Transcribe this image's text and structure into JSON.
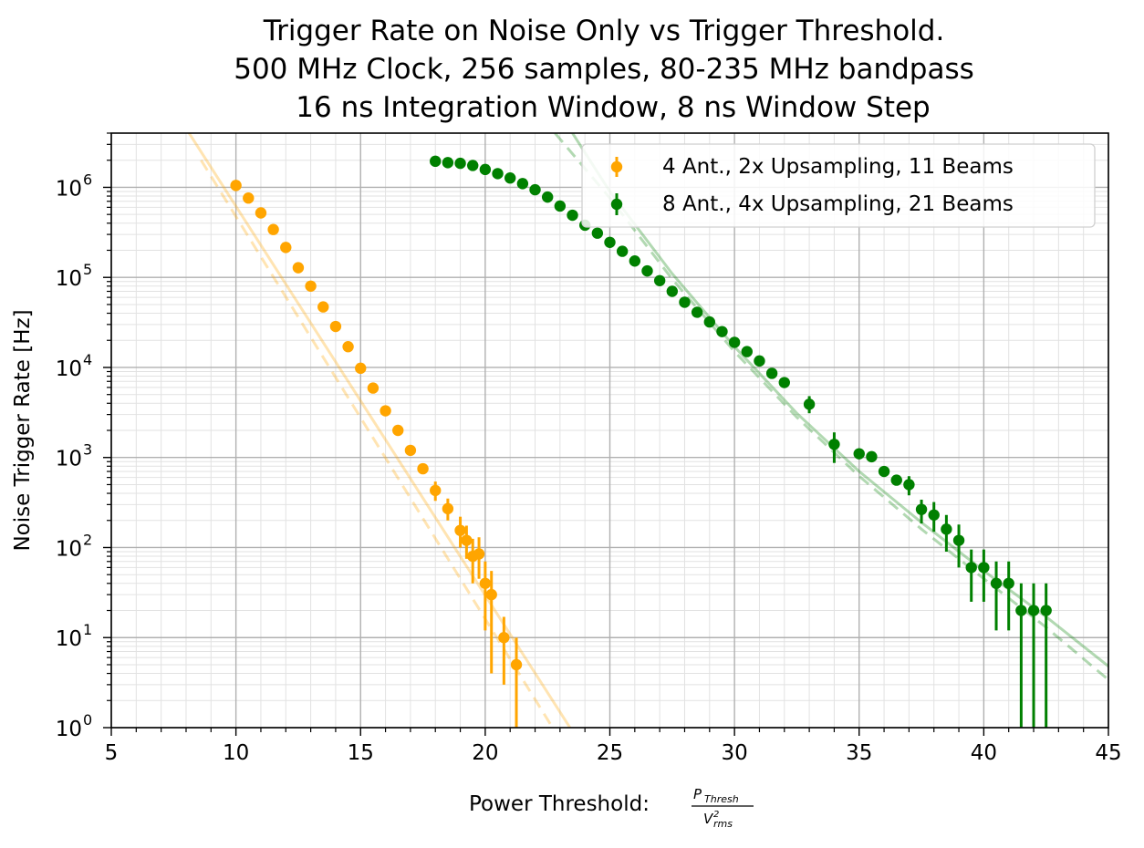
{
  "chart_data": {
    "type": "scatter",
    "title": "Trigger Rate on Noise Only vs Trigger Threshold.",
    "subtitle_lines": [
      "500 MHz Clock, 256 samples, 80-235 MHz bandpass",
      "16 ns Integration Window, 8 ns Window Step"
    ],
    "xlabel_prefix": "Power Threshold:",
    "xlabel_fraction": {
      "numerator": "P",
      "numerator_sub": "Thresh",
      "denominator": "V",
      "denominator_sup": "2",
      "denominator_sub": "rms"
    },
    "ylabel": "Noise Trigger Rate [Hz]",
    "xlim": [
      5,
      45
    ],
    "ylim": [
      1,
      4000000
    ],
    "yscale": "log",
    "grid": true,
    "legend_position": "top-right",
    "x_ticks": [
      "5",
      "10",
      "15",
      "20",
      "25",
      "30",
      "35",
      "40",
      "45"
    ],
    "y_ticks": [
      {
        "base": "10",
        "exp": "0"
      },
      {
        "base": "10",
        "exp": "1"
      },
      {
        "base": "10",
        "exp": "2"
      },
      {
        "base": "10",
        "exp": "3"
      },
      {
        "base": "10",
        "exp": "4"
      },
      {
        "base": "10",
        "exp": "5"
      },
      {
        "base": "10",
        "exp": "6"
      }
    ],
    "series": [
      {
        "name": "4 Ant., 2x Upsampling, 11 Beams",
        "color": "#ffa500",
        "points": [
          {
            "x": 10.0,
            "y": 1050000
          },
          {
            "x": 10.5,
            "y": 760000
          },
          {
            "x": 11.0,
            "y": 520000
          },
          {
            "x": 11.5,
            "y": 340000
          },
          {
            "x": 12.0,
            "y": 215000
          },
          {
            "x": 12.5,
            "y": 128000
          },
          {
            "x": 13.0,
            "y": 80000
          },
          {
            "x": 13.5,
            "y": 47000
          },
          {
            "x": 14.0,
            "y": 28500
          },
          {
            "x": 14.5,
            "y": 17000
          },
          {
            "x": 15.0,
            "y": 9800
          },
          {
            "x": 15.5,
            "y": 5900
          },
          {
            "x": 16.0,
            "y": 3300
          },
          {
            "x": 16.5,
            "y": 2000
          },
          {
            "x": 17.0,
            "y": 1200
          },
          {
            "x": 17.5,
            "y": 750
          },
          {
            "x": 18.0,
            "y": 430,
            "err_lo": 330,
            "err_hi": 540
          },
          {
            "x": 18.5,
            "y": 270,
            "err_lo": 200,
            "err_hi": 350
          },
          {
            "x": 19.0,
            "y": 155,
            "err_lo": 100,
            "err_hi": 220
          },
          {
            "x": 19.25,
            "y": 120,
            "err_lo": 75,
            "err_hi": 175
          },
          {
            "x": 19.5,
            "y": 80,
            "err_lo": 40,
            "err_hi": 125
          },
          {
            "x": 19.75,
            "y": 85,
            "err_lo": 45,
            "err_hi": 130
          },
          {
            "x": 20.0,
            "y": 40,
            "err_lo": 12,
            "err_hi": 70
          },
          {
            "x": 20.25,
            "y": 30,
            "err_lo": 4,
            "err_hi": 55
          },
          {
            "x": 20.75,
            "y": 10,
            "err_lo": 3,
            "err_hi": 17
          },
          {
            "x": 21.25,
            "y": 5,
            "err_lo": 1,
            "err_hi": 10
          }
        ],
        "fit_solid": [
          [
            8.0,
            4500000
          ],
          [
            23.4,
            1
          ]
        ],
        "fit_dashed": [
          [
            8.6,
            2000000
          ],
          [
            22.7,
            1
          ]
        ]
      },
      {
        "name": "8 Ant., 4x Upsampling, 21 Beams",
        "color": "#008000",
        "points": [
          {
            "x": 18.0,
            "y": 1950000
          },
          {
            "x": 18.5,
            "y": 1880000
          },
          {
            "x": 19.0,
            "y": 1850000
          },
          {
            "x": 19.5,
            "y": 1750000
          },
          {
            "x": 20.0,
            "y": 1580000
          },
          {
            "x": 20.5,
            "y": 1420000
          },
          {
            "x": 21.0,
            "y": 1270000
          },
          {
            "x": 21.5,
            "y": 1100000
          },
          {
            "x": 22.0,
            "y": 940000
          },
          {
            "x": 22.5,
            "y": 780000
          },
          {
            "x": 23.0,
            "y": 620000
          },
          {
            "x": 23.5,
            "y": 490000
          },
          {
            "x": 24.0,
            "y": 380000
          },
          {
            "x": 24.5,
            "y": 310000
          },
          {
            "x": 25.0,
            "y": 245000
          },
          {
            "x": 25.5,
            "y": 195000
          },
          {
            "x": 26.0,
            "y": 152000
          },
          {
            "x": 26.5,
            "y": 118000
          },
          {
            "x": 27.0,
            "y": 92000
          },
          {
            "x": 27.5,
            "y": 70000
          },
          {
            "x": 28.0,
            "y": 53000
          },
          {
            "x": 28.5,
            "y": 41000
          },
          {
            "x": 29.0,
            "y": 32000
          },
          {
            "x": 29.5,
            "y": 25000
          },
          {
            "x": 30.0,
            "y": 19000
          },
          {
            "x": 30.5,
            "y": 15000
          },
          {
            "x": 31.0,
            "y": 11800
          },
          {
            "x": 31.5,
            "y": 8600
          },
          {
            "x": 32.0,
            "y": 6800
          },
          {
            "x": 33.0,
            "y": 3900,
            "err_lo": 3100,
            "err_hi": 4800
          },
          {
            "x": 34.0,
            "y": 1400,
            "err_lo": 870,
            "err_hi": 1900
          },
          {
            "x": 35.0,
            "y": 1100
          },
          {
            "x": 35.5,
            "y": 1020
          },
          {
            "x": 36.0,
            "y": 700
          },
          {
            "x": 36.5,
            "y": 560
          },
          {
            "x": 37.0,
            "y": 500,
            "err_lo": 380,
            "err_hi": 620
          },
          {
            "x": 37.5,
            "y": 265,
            "err_lo": 185,
            "err_hi": 340
          },
          {
            "x": 38.0,
            "y": 230,
            "err_lo": 150,
            "err_hi": 320
          },
          {
            "x": 38.5,
            "y": 160,
            "err_lo": 90,
            "err_hi": 230
          },
          {
            "x": 39.0,
            "y": 120,
            "err_lo": 60,
            "err_hi": 180
          },
          {
            "x": 39.5,
            "y": 60,
            "err_lo": 25,
            "err_hi": 95
          },
          {
            "x": 40.0,
            "y": 60,
            "err_lo": 25,
            "err_hi": 95
          },
          {
            "x": 40.5,
            "y": 40,
            "err_lo": 12,
            "err_hi": 70
          },
          {
            "x": 41.0,
            "y": 40,
            "err_lo": 12,
            "err_hi": 70
          },
          {
            "x": 41.5,
            "y": 20,
            "err_lo": 1,
            "err_hi": 40
          },
          {
            "x": 42.0,
            "y": 20,
            "err_lo": 1,
            "err_hi": 40
          },
          {
            "x": 42.5,
            "y": 20,
            "err_lo": 1,
            "err_hi": 40
          }
        ],
        "fit_solid": [
          [
            23.5,
            4000000
          ],
          [
            25.0,
            900000
          ],
          [
            27.5,
            110000
          ],
          [
            30.0,
            17000
          ],
          [
            32.5,
            3100
          ],
          [
            35.0,
            700
          ],
          [
            37.5,
            190
          ],
          [
            40.0,
            55
          ],
          [
            42.5,
            17
          ],
          [
            45.0,
            4.8
          ]
        ],
        "fit_dashed": [
          [
            22.8,
            4000000
          ],
          [
            25.0,
            760000
          ],
          [
            27.5,
            96000
          ],
          [
            30.0,
            15000
          ],
          [
            32.5,
            2800
          ],
          [
            35.0,
            620
          ],
          [
            37.5,
            160
          ],
          [
            40.0,
            45
          ],
          [
            42.5,
            13
          ],
          [
            45.0,
            3.4
          ]
        ]
      }
    ]
  }
}
